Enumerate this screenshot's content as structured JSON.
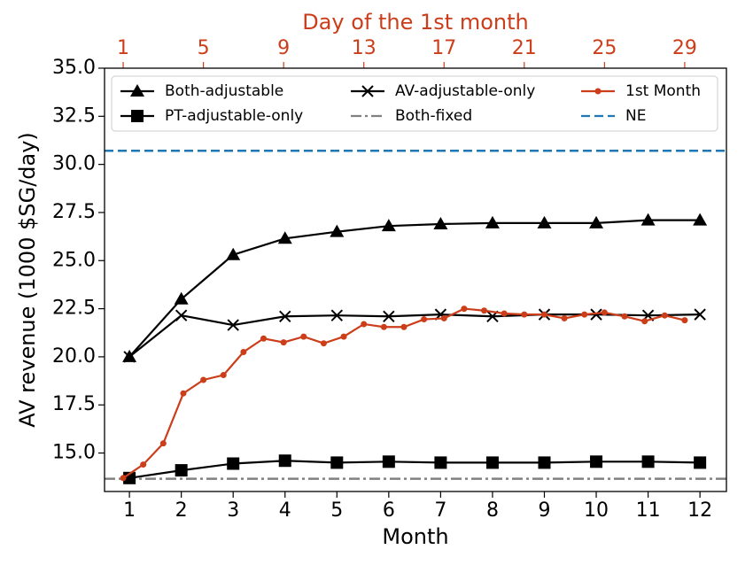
{
  "chart_data": {
    "type": "line",
    "xlabel": "Month",
    "x2label": "Day of the 1st month",
    "ylabel": "AV revenue (1000 $SG/day)",
    "x2color": "#cc3d1a",
    "xlim": [
      0.52,
      12.51
    ],
    "xticks": [
      1,
      2,
      3,
      4,
      5,
      6,
      7,
      8,
      9,
      10,
      11,
      12
    ],
    "x2lim": [
      0.07,
      31.08
    ],
    "x2ticks": [
      1,
      5,
      9,
      13,
      17,
      21,
      25,
      29
    ],
    "ylim": [
      13.0,
      35.0
    ],
    "yticks": [
      {
        "value": 15,
        "label": "15.0"
      },
      {
        "value": 17.5,
        "label": "17.5"
      },
      {
        "value": 20,
        "label": "20.0"
      },
      {
        "value": 22.5,
        "label": "22.5"
      },
      {
        "value": 25,
        "label": "25.0"
      },
      {
        "value": 27.5,
        "label": "27.5"
      },
      {
        "value": 30,
        "label": "30.0"
      },
      {
        "value": 32.5,
        "label": "32.5"
      },
      {
        "value": 35,
        "label": "35.0"
      }
    ],
    "legend": "upper center",
    "x": [
      1,
      2,
      3,
      4,
      5,
      6,
      7,
      8,
      9,
      10,
      11,
      12
    ],
    "series": [
      {
        "name": "Both-adjustable",
        "color": "#000000",
        "marker": "triangle",
        "values": [
          20.0,
          23.0,
          25.3,
          26.15,
          26.5,
          26.8,
          26.9,
          26.95,
          26.95,
          26.95,
          27.1,
          27.1
        ]
      },
      {
        "name": "PT-adjustable-only",
        "color": "#000000",
        "marker": "square",
        "values": [
          13.7,
          14.1,
          14.45,
          14.6,
          14.5,
          14.55,
          14.5,
          14.5,
          14.5,
          14.55,
          14.55,
          14.5
        ]
      },
      {
        "name": "AV-adjustable-only",
        "color": "#000000",
        "marker": "x",
        "values": [
          20.0,
          22.15,
          21.65,
          22.1,
          22.15,
          22.1,
          22.2,
          22.1,
          22.2,
          22.2,
          22.15,
          22.2
        ]
      },
      {
        "name": "1st Month",
        "color": "#cc3d1a",
        "marker": "dot",
        "axis": "x2",
        "x": [
          1,
          2,
          3,
          4,
          5,
          6,
          7,
          8,
          9,
          10,
          11,
          12,
          13,
          14,
          15,
          16,
          17,
          18,
          19,
          20,
          21,
          22,
          23,
          24,
          25,
          26,
          27,
          28,
          29
        ],
        "values": [
          13.7,
          14.4,
          15.5,
          18.1,
          18.8,
          19.05,
          20.25,
          20.95,
          20.75,
          21.05,
          20.7,
          21.05,
          21.7,
          21.55,
          21.55,
          21.95,
          22.0,
          22.5,
          22.4,
          22.25,
          22.2,
          22.2,
          22.0,
          22.2,
          22.3,
          22.1,
          21.85,
          22.15,
          21.9
        ]
      }
    ],
    "hlines": [
      {
        "name": "Both-fixed",
        "color": "#808080",
        "dash": "dashdot",
        "value": 13.66
      },
      {
        "name": "NE",
        "color": "#1f77b4",
        "dash": "dashed",
        "value": 30.71
      }
    ]
  }
}
